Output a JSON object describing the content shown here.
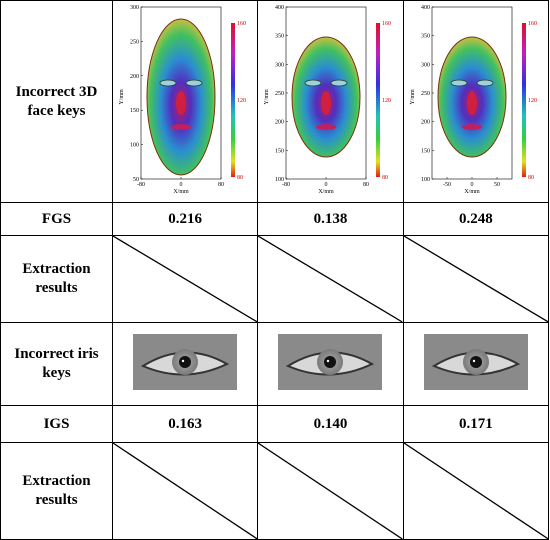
{
  "table": {
    "rows": [
      {
        "label": "Incorrect 3D face keys",
        "cells": [
          {
            "xlabel": "X/mm",
            "ylabel": "Y/mm",
            "xlim": [
              -80,
              80
            ],
            "xticks": [
              -80,
              0,
              80
            ],
            "ylim": [
              50,
              300
            ],
            "yticks": [
              50,
              100,
              150,
              200,
              250,
              300
            ],
            "clim": [
              80,
              160
            ],
            "cticks": [
              80,
              120,
              160
            ]
          },
          {
            "xlabel": "X/mm",
            "ylabel": "Y/mm",
            "xlim": [
              -80,
              80
            ],
            "xticks": [
              -80,
              0,
              80
            ],
            "ylim": [
              100,
              400
            ],
            "yticks": [
              100,
              150,
              200,
              250,
              300,
              350,
              400
            ],
            "clim": [
              80,
              160
            ],
            "cticks": [
              80,
              120,
              160
            ]
          },
          {
            "xlabel": "X/mm",
            "ylabel": "Y/mm",
            "xlim": [
              -80,
              80
            ],
            "xticks": [
              -50,
              0,
              50
            ],
            "ylim": [
              100,
              400
            ],
            "yticks": [
              100,
              150,
              200,
              250,
              300,
              350,
              400
            ],
            "clim": [
              80,
              160
            ],
            "cticks": [
              80,
              120,
              160
            ]
          }
        ]
      },
      {
        "label": "FGS",
        "cells": [
          "0.216",
          "0.138",
          "0.248"
        ]
      },
      {
        "label": "Extraction results"
      },
      {
        "label": "Incorrect iris keys"
      },
      {
        "label": "IGS",
        "cells": [
          "0.163",
          "0.140",
          "0.171"
        ]
      },
      {
        "label": "Extraction results"
      }
    ]
  }
}
